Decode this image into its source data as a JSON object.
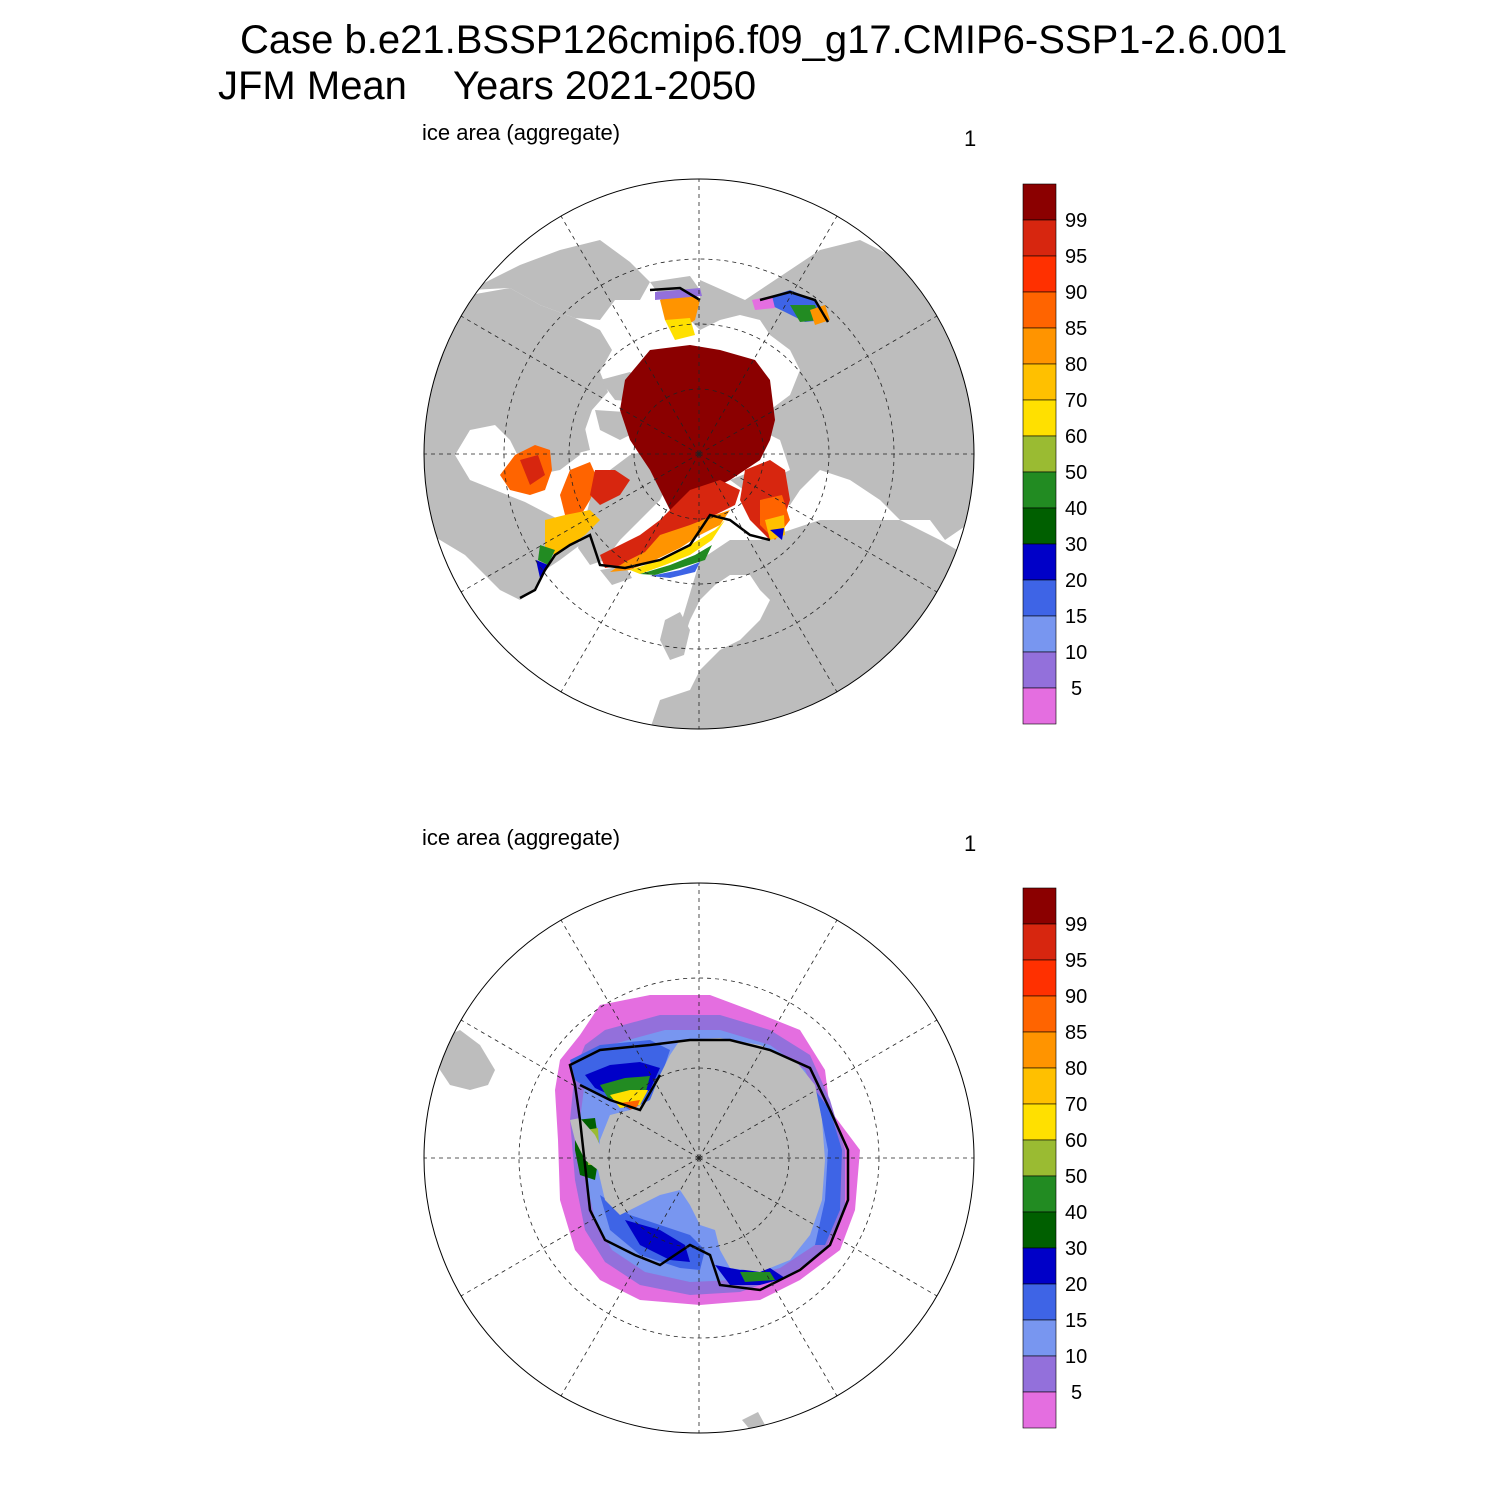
{
  "title_line1": "Case b.e21.BSSP126cmip6.f09_g17.CMIP6-SSP1-2.6.001",
  "title_season": "JFM Mean",
  "title_years": "Years 2021-2050",
  "panels": [
    {
      "label": "ice area  (aggregate)",
      "number": "1",
      "hemisphere": "north"
    },
    {
      "label": "ice area  (aggregate)",
      "number": "1",
      "hemisphere": "south"
    }
  ],
  "colorbar": {
    "labels": [
      "99",
      "95",
      "90",
      "85",
      "80",
      "70",
      "60",
      "50",
      "40",
      "30",
      "20",
      "15",
      "10",
      "5"
    ],
    "colors": [
      "#8b0000",
      "#d7260f",
      "#ff3000",
      "#ff6400",
      "#ff9400",
      "#ffc000",
      "#ffe000",
      "#9abb32",
      "#228b22",
      "#005f00",
      "#0000c8",
      "#3e64e6",
      "#7896f0",
      "#9370db",
      "#e46ee0"
    ]
  },
  "colors": {
    "land": "#bdbdbd",
    "ocean": "#ffffff"
  }
}
